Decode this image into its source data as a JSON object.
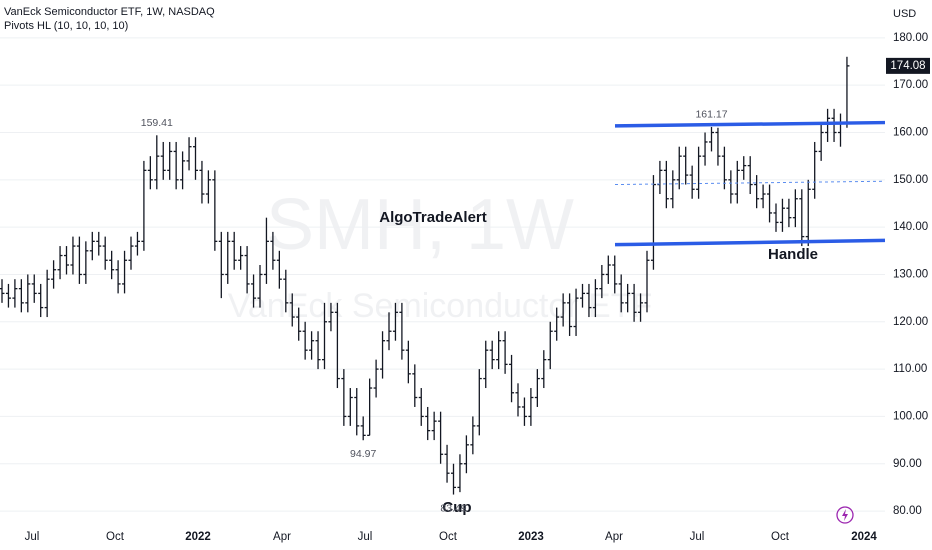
{
  "chart_data": {
    "type": "ohlc",
    "title": "VanEck Semiconductor ETF, 1W, NASDAQ",
    "subtitle": "Pivots HL (10, 10, 10, 10)",
    "watermark": "SMH, 1W",
    "watermark_sub": "VanEck Semiconductor ETF",
    "currency": "USD",
    "annotations": [
      "AlgoTradeAlert",
      "Cup",
      "Handle"
    ],
    "color": "#131722",
    "level_color": "#2b5ce6",
    "mid_color": "#5b8def",
    "levels": [
      {
        "start": 161.4,
        "end": 162.1
      },
      {
        "start": 136.3,
        "end": 137.2
      }
    ],
    "mid_level": {
      "start": 149.0,
      "end": 149.7
    },
    "xtick_labels": [
      "Jul",
      "Oct",
      "2022",
      "Apr",
      "Jul",
      "Oct",
      "2023",
      "Apr",
      "Jul",
      "Oct",
      "2024"
    ],
    "ylim": [
      76,
      188
    ],
    "yticks": [
      {
        "value": 80,
        "label": "80.00"
      },
      {
        "value": 90,
        "label": "90.00"
      },
      {
        "value": 100,
        "label": "100.00"
      },
      {
        "value": 110,
        "label": "110.00"
      },
      {
        "value": 120,
        "label": "120.00"
      },
      {
        "value": 130,
        "label": "130.00"
      },
      {
        "value": 140,
        "label": "140.00"
      },
      {
        "value": 150,
        "label": "150.00"
      },
      {
        "value": 160,
        "label": "160.00"
      },
      {
        "value": 170,
        "label": "170.00"
      },
      {
        "value": 180,
        "label": "180.00"
      }
    ],
    "open": [
      127,
      126,
      125,
      127,
      124,
      128,
      126,
      123,
      129,
      131,
      134,
      132,
      136,
      130,
      135,
      137,
      136,
      133,
      131,
      128,
      133,
      136,
      137,
      152,
      150,
      155,
      152,
      156,
      150,
      154,
      157,
      152,
      147,
      150,
      137,
      130,
      137,
      133,
      134,
      128,
      125,
      130,
      137,
      133,
      129,
      124,
      121,
      118,
      114,
      116,
      112,
      120,
      122,
      108,
      100,
      104,
      98,
      96,
      106,
      110,
      116,
      118,
      122,
      114,
      109,
      104,
      100,
      97,
      99,
      92,
      88,
      85,
      90,
      94,
      98,
      108,
      114,
      112,
      116,
      111,
      105,
      102,
      100,
      104,
      108,
      112,
      118,
      121,
      124,
      119,
      125,
      126,
      123,
      127,
      130,
      132,
      128,
      124,
      126,
      122,
      124,
      133,
      149,
      152,
      146,
      150,
      155,
      151,
      148,
      155,
      158,
      160,
      155,
      150,
      147,
      152,
      153,
      149,
      146,
      147,
      143,
      141,
      144,
      142,
      146,
      138,
      148,
      156,
      160,
      163,
      160,
      162
    ],
    "high": [
      129,
      128,
      129,
      129,
      130,
      130,
      128,
      131,
      133,
      136,
      136,
      138,
      138,
      137,
      139,
      139,
      138,
      135,
      133,
      135,
      138,
      139,
      154,
      155,
      159.41,
      158,
      158,
      158,
      156,
      159,
      159,
      154,
      152,
      152,
      139,
      139,
      139,
      136,
      136,
      130,
      132,
      142,
      139,
      135,
      131,
      126,
      123,
      120,
      118,
      118,
      124,
      124,
      124,
      110,
      106,
      106,
      100,
      108,
      112,
      118,
      122,
      124,
      124,
      116,
      111,
      106,
      102,
      101,
      101,
      94,
      90,
      92,
      96,
      100,
      110,
      116,
      116,
      118,
      118,
      113,
      107,
      104,
      106,
      110,
      114,
      120,
      123,
      126,
      126,
      127,
      128,
      128,
      129,
      132,
      134,
      134,
      130,
      128,
      128,
      126,
      135,
      151,
      154,
      154,
      152,
      157,
      157,
      153,
      157,
      160,
      161.17,
      161,
      157,
      152,
      154,
      155,
      155,
      151,
      149,
      149,
      145,
      146,
      146,
      148,
      148,
      150,
      158,
      162,
      165,
      165,
      164,
      176
    ],
    "low": [
      124,
      123,
      123,
      122,
      122,
      124,
      121,
      121,
      127,
      129,
      130,
      130,
      128,
      128,
      133,
      134,
      131,
      129,
      126,
      126,
      131,
      134,
      135,
      148,
      148,
      150,
      150,
      148,
      148,
      152,
      150,
      145,
      145,
      135,
      125,
      128,
      131,
      131,
      126,
      123,
      123,
      128,
      131,
      127,
      122,
      119,
      116,
      112,
      112,
      110,
      110,
      118,
      106,
      98,
      98,
      96,
      94.97,
      96,
      104,
      108,
      114,
      116,
      112,
      107,
      102,
      98,
      95,
      95,
      90,
      86,
      83.49,
      84,
      88,
      92,
      96,
      106,
      110,
      110,
      109,
      103,
      100,
      98,
      98,
      102,
      106,
      110,
      116,
      119,
      117,
      117,
      123,
      121,
      121,
      125,
      128,
      126,
      122,
      122,
      120,
      120,
      122,
      131,
      147,
      144,
      144,
      148,
      149,
      146,
      146,
      153,
      156,
      153,
      148,
      145,
      145,
      150,
      147,
      144,
      144,
      141,
      139,
      139,
      140,
      140,
      136,
      136,
      146,
      154,
      158,
      158,
      157,
      161
    ],
    "close": [
      126,
      125,
      127,
      124,
      128,
      126,
      123,
      129,
      131,
      134,
      132,
      136,
      130,
      135,
      137,
      136,
      133,
      131,
      128,
      133,
      136,
      137,
      152,
      150,
      155,
      152,
      156,
      150,
      154,
      157,
      152,
      147,
      150,
      137,
      130,
      137,
      133,
      134,
      128,
      125,
      130,
      137,
      133,
      129,
      124,
      121,
      118,
      114,
      116,
      112,
      120,
      122,
      108,
      100,
      104,
      98,
      96,
      106,
      110,
      116,
      118,
      122,
      114,
      109,
      104,
      100,
      97,
      99,
      92,
      88,
      85,
      90,
      94,
      98,
      108,
      114,
      112,
      116,
      111,
      105,
      102,
      100,
      104,
      108,
      112,
      118,
      121,
      124,
      119,
      125,
      126,
      123,
      127,
      130,
      132,
      128,
      124,
      126,
      122,
      124,
      133,
      149,
      152,
      146,
      150,
      155,
      151,
      148,
      155,
      158,
      160,
      155,
      150,
      147,
      152,
      153,
      149,
      146,
      147,
      143,
      141,
      144,
      142,
      146,
      138,
      148,
      156,
      160,
      163,
      160,
      162,
      174.08
    ]
  }
}
